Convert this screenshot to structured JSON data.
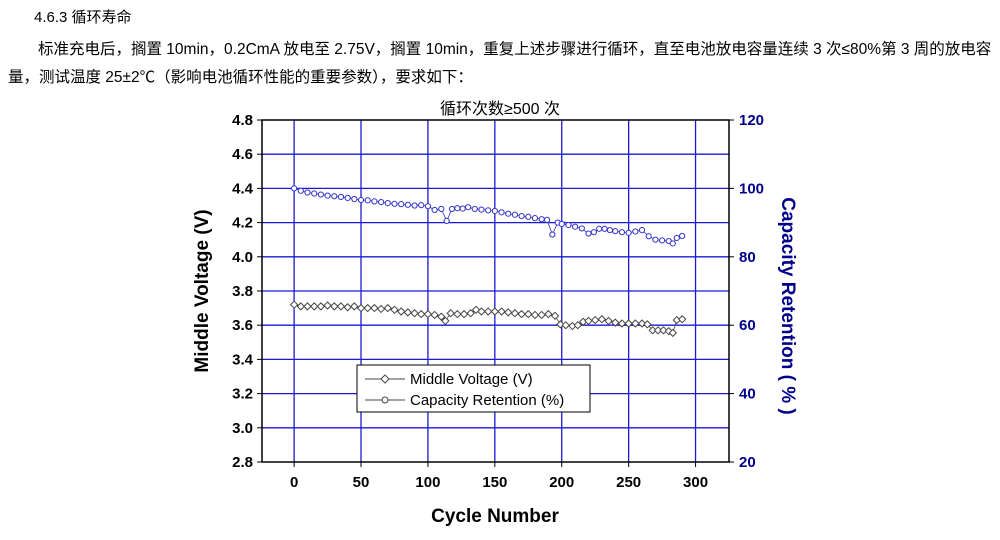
{
  "section": {
    "heading": "4.6.3 循环寿命",
    "paragraph": "标准充电后，搁置 10min，0.2CmA 放电至 2.75V，搁置 10min，重复上述步骤进行循环，直至电池放电容量连续 3 次≤80%第 3 周的放电容量，测试温度 25±2℃（影响电池循环性能的重要参数），要求如下："
  },
  "chart_data": {
    "type": "scatter",
    "title": "循环次数≥500 次",
    "xlabel": "Cycle Number",
    "ylabel": "Middle Voltage (V)",
    "y2label": "Capacity Retention ( % )",
    "xlim": [
      -24,
      325
    ],
    "ylim": [
      2.8,
      4.8
    ],
    "y2lim": [
      20,
      120
    ],
    "xticks": [
      "0",
      "50",
      "100",
      "150",
      "200",
      "250",
      "300"
    ],
    "yticks": [
      "2.8",
      "3.0",
      "3.2",
      "3.4",
      "3.6",
      "3.8",
      "4.0",
      "4.2",
      "4.4",
      "4.6",
      "4.8"
    ],
    "y2ticks": [
      "20",
      "40",
      "60",
      "80",
      "100",
      "120"
    ],
    "grid": true,
    "legend_position": "bottom-center",
    "colors": {
      "grid": "#1a1ad6",
      "voltage": "#444444",
      "capacity": "#3333cc",
      "right_axis": "#00008b"
    },
    "series": [
      {
        "name": "Middle Voltage (V)",
        "axis": "left",
        "marker": "diamond",
        "x": [
          0,
          5,
          10,
          15,
          20,
          25,
          30,
          35,
          40,
          45,
          50,
          55,
          60,
          65,
          70,
          75,
          80,
          85,
          90,
          95,
          100,
          105,
          110,
          113,
          117,
          122,
          127,
          132,
          136,
          140,
          145,
          150,
          155,
          160,
          165,
          170,
          175,
          180,
          185,
          190,
          195,
          199,
          203,
          208,
          212,
          216,
          220,
          225,
          230,
          235,
          240,
          245,
          250,
          255,
          260,
          264,
          268,
          272,
          276,
          280,
          283,
          286,
          290
        ],
        "y": [
          3.72,
          3.71,
          3.71,
          3.71,
          3.71,
          3.715,
          3.71,
          3.71,
          3.705,
          3.71,
          3.7,
          3.7,
          3.7,
          3.695,
          3.7,
          3.69,
          3.68,
          3.675,
          3.67,
          3.665,
          3.665,
          3.66,
          3.65,
          3.625,
          3.67,
          3.665,
          3.665,
          3.67,
          3.69,
          3.68,
          3.68,
          3.68,
          3.68,
          3.675,
          3.67,
          3.665,
          3.665,
          3.66,
          3.66,
          3.665,
          3.655,
          3.605,
          3.6,
          3.595,
          3.6,
          3.62,
          3.625,
          3.63,
          3.635,
          3.625,
          3.615,
          3.61,
          3.61,
          3.61,
          3.61,
          3.605,
          3.57,
          3.57,
          3.57,
          3.565,
          3.555,
          3.63,
          3.635
        ]
      },
      {
        "name": "Capacity Retention (%)",
        "axis": "right",
        "marker": "circle",
        "x": [
          0,
          5,
          10,
          15,
          20,
          25,
          30,
          35,
          40,
          45,
          50,
          55,
          60,
          65,
          70,
          75,
          80,
          85,
          90,
          95,
          100,
          105,
          110,
          114,
          118,
          122,
          126,
          130,
          135,
          140,
          145,
          150,
          155,
          160,
          165,
          170,
          175,
          180,
          185,
          189,
          193,
          197,
          200,
          205,
          210,
          215,
          220,
          224,
          228,
          232,
          236,
          240,
          245,
          250,
          255,
          260,
          265,
          270,
          275,
          280,
          283,
          286,
          290
        ],
        "y": [
          100,
          99.3,
          98.8,
          98.5,
          98.2,
          97.9,
          97.7,
          97.5,
          97.2,
          96.9,
          96.6,
          96.5,
          96.2,
          96.0,
          95.7,
          95.5,
          95.4,
          95.2,
          95.0,
          95.1,
          94.8,
          93.7,
          94.0,
          90.5,
          94.0,
          94.2,
          94.1,
          94.5,
          94.0,
          93.8,
          93.6,
          93.4,
          93.0,
          92.6,
          92.3,
          91.9,
          91.7,
          91.3,
          91.0,
          90.8,
          86.5,
          90.0,
          89.6,
          89.3,
          88.8,
          88.3,
          86.8,
          87.2,
          88.2,
          88.2,
          87.8,
          87.5,
          87.2,
          87.0,
          87.4,
          87.8,
          86.0,
          85.0,
          84.8,
          84.6,
          83.9,
          85.5,
          86.1
        ]
      }
    ]
  }
}
